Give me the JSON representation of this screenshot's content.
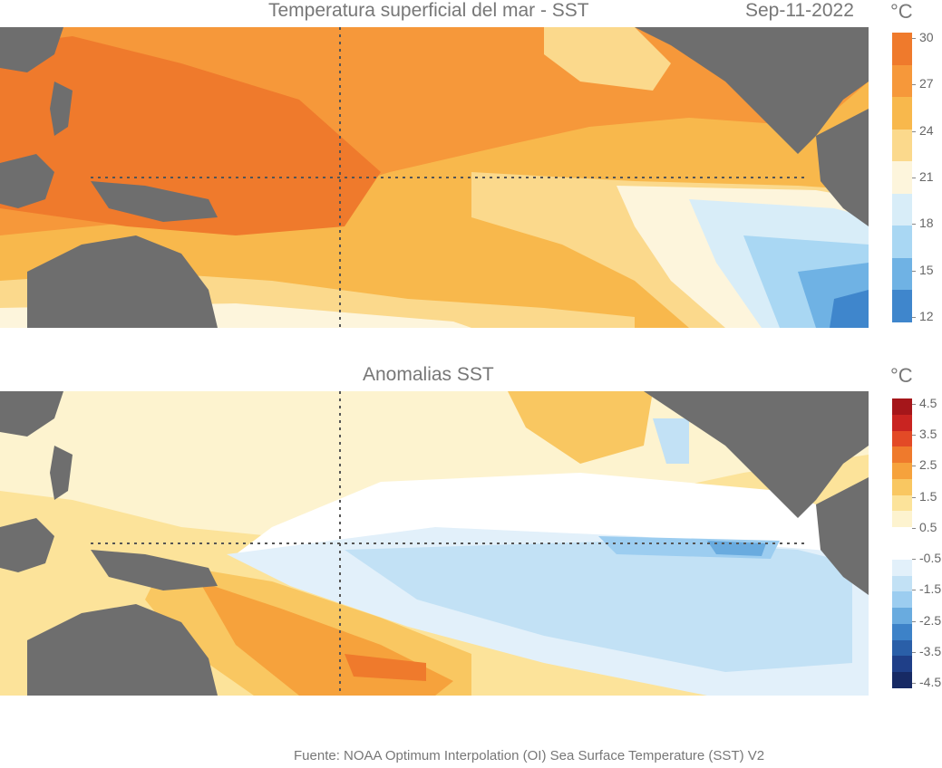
{
  "sst_panel": {
    "title": "Temperatura superficial del mar - SST",
    "date": "Sep-11-2022",
    "unit": "°C",
    "colorbar": {
      "ticks": [
        "30",
        "27",
        "24",
        "21",
        "18",
        "15",
        "12"
      ],
      "colors": [
        "#ef7a2c",
        "#f6983a",
        "#f8b84c",
        "#fbd98c",
        "#fdf5dc",
        "#d8edf8",
        "#a9d7f3",
        "#6fb2e4",
        "#3f86cc"
      ]
    }
  },
  "anomaly_panel": {
    "title": "Anomalias SST",
    "unit": "°C",
    "colorbar": {
      "ticks": [
        "4.5",
        "3.5",
        "2.5",
        "1.5",
        "0.5",
        "-0.5",
        "-1.5",
        "-2.5",
        "-3.5",
        "-4.5"
      ],
      "colors": [
        "#a5161a",
        "#c92421",
        "#e34a26",
        "#ef7a2c",
        "#f6a23c",
        "#f9c761",
        "#fce39a",
        "#fdf3cf",
        "#ffffff",
        "#ffffff",
        "#e2f0fa",
        "#c2e1f5",
        "#9ccdf0",
        "#69abdf",
        "#3d82c8",
        "#2a5fa8",
        "#1f3f88",
        "#172a64"
      ]
    }
  },
  "map_colors": {
    "land": "#6e6e6e",
    "grid": "#555555"
  },
  "source": "Fuente: NOAA Optimum Interpolation (OI) Sea Surface Temperature (SST) V2"
}
